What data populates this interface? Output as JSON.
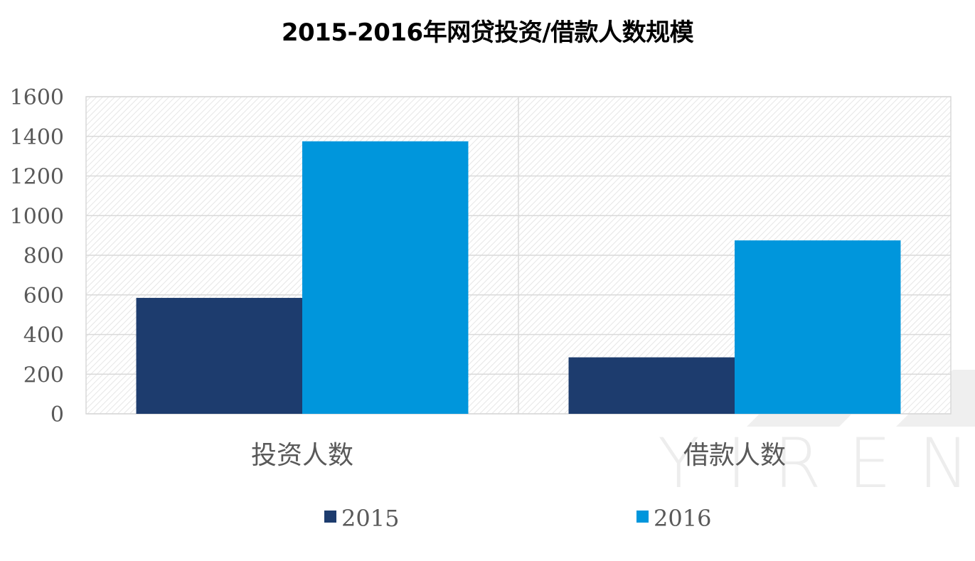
{
  "chart_data": {
    "type": "bar",
    "title": "2015-2016年网贷投资/借款人数规模",
    "categories": [
      "投资人数",
      "借款人数"
    ],
    "series": [
      {
        "name": "2015",
        "values": [
          585,
          285
        ],
        "color": "#1d3c6e"
      },
      {
        "name": "2016",
        "values": [
          1375,
          875
        ],
        "color": "#0096dc"
      }
    ],
    "ylim": [
      0,
      1600
    ],
    "yticks": [
      "0",
      "200",
      "400",
      "600",
      "800",
      "1000",
      "1200",
      "1400",
      "1600"
    ],
    "grid": true,
    "legend": "bottom",
    "xlabel": "",
    "ylabel": ""
  },
  "watermark": {
    "text": "YIREN"
  },
  "colors": {
    "gridline": "#d9d9d9",
    "plot_border": "#d9d9d9",
    "hatch": "#e6e6e6",
    "watermark": "#ededed"
  }
}
